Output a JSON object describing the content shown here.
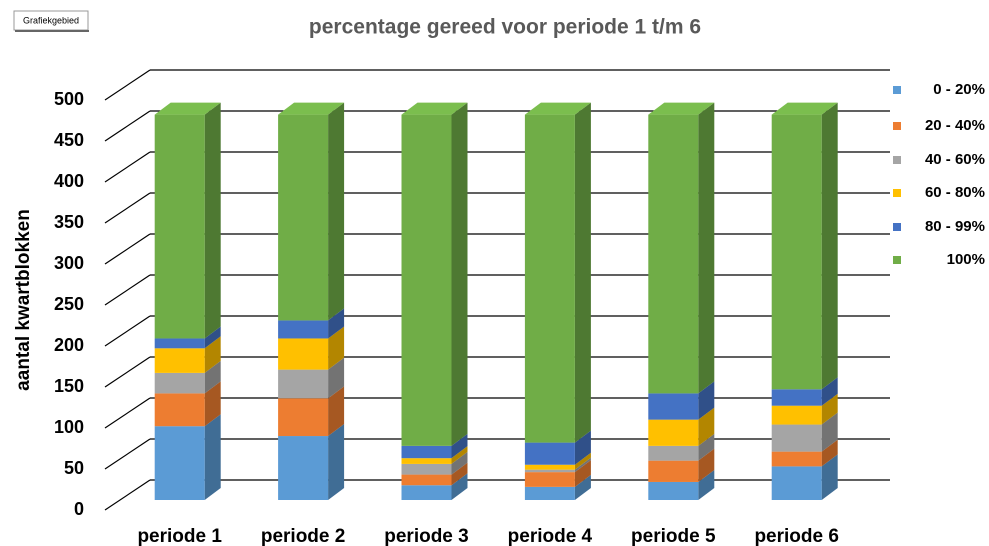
{
  "tooltip": "Grafiekgebied",
  "chart_data": {
    "type": "bar",
    "stacked": true,
    "three_d": true,
    "title": "percentage gereed voor periode 1 t/m 6",
    "y_label": "aantal kwartblokken",
    "categories": [
      "periode 1",
      "periode 2",
      "periode 3",
      "periode 4",
      "periode 5",
      "periode 6"
    ],
    "series": [
      {
        "name": "0 - 20%",
        "color": "#5b9bd5",
        "values": [
          90,
          78,
          18,
          16,
          22,
          41
        ]
      },
      {
        "name": "20 - 40%",
        "color": "#ed7d31",
        "values": [
          40,
          46,
          13,
          18,
          26,
          18
        ]
      },
      {
        "name": "40 - 60%",
        "color": "#a5a5a5",
        "values": [
          25,
          35,
          13,
          3,
          18,
          33
        ]
      },
      {
        "name": "60 - 80%",
        "color": "#ffc000",
        "values": [
          30,
          38,
          7,
          6,
          32,
          23
        ]
      },
      {
        "name": "80 - 99%",
        "color": "#4472c4",
        "values": [
          12,
          22,
          15,
          27,
          32,
          20
        ]
      },
      {
        "name": "100%",
        "color": "#70ad47",
        "values": [
          273,
          251,
          404,
          400,
          340,
          335
        ]
      }
    ],
    "ylim": [
      0,
      500
    ],
    "yticks": [
      0,
      50,
      100,
      150,
      200,
      250,
      300,
      350,
      400,
      450,
      500
    ],
    "grid": true,
    "legend": "right"
  }
}
